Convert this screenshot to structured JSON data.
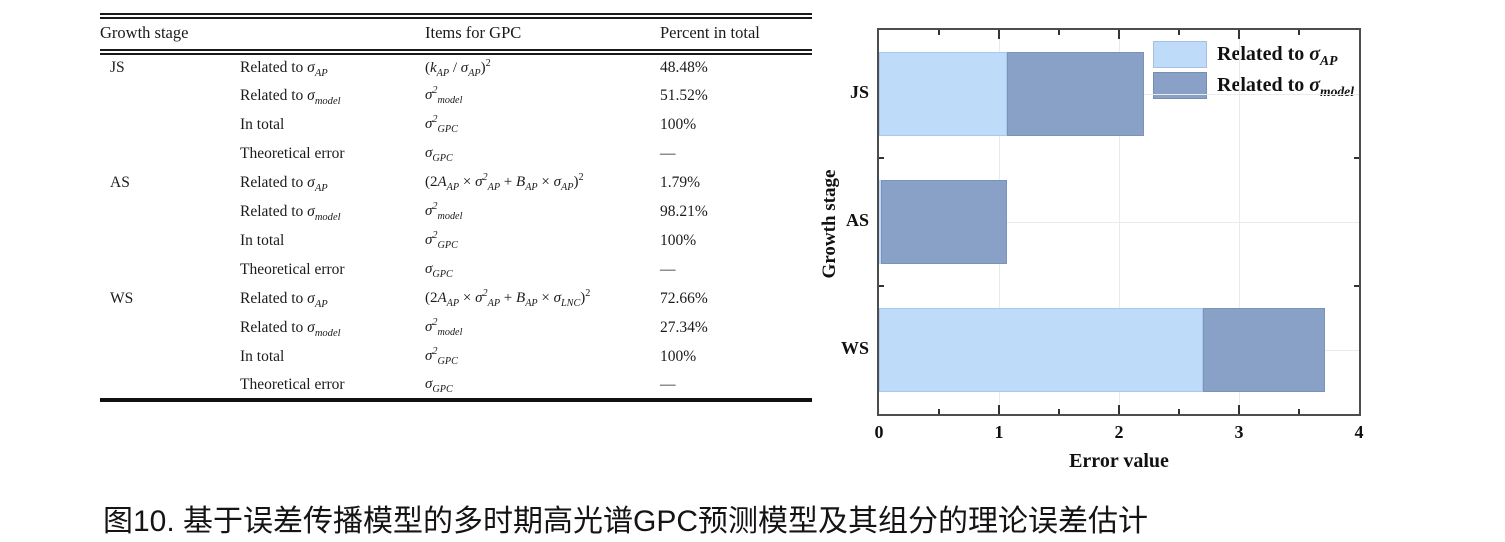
{
  "table": {
    "headers": [
      "Growth stage",
      "Items for GPC",
      "Percent in total"
    ],
    "rows": [
      {
        "stage": "JS",
        "item": "Related to *σ~AP~*",
        "formula": "(*k~AP~* / *σ~AP~*)^2^",
        "percent": "48.48%"
      },
      {
        "stage": "",
        "item": "Related to *σ~model~*",
        "formula": "*σ^2^~model~*",
        "percent": "51.52%"
      },
      {
        "stage": "",
        "item": "In total",
        "formula": "*σ^2^~GPC~*",
        "percent": "100%"
      },
      {
        "stage": "",
        "item": "Theoretical error",
        "formula": "*σ~GPC~*",
        "percent": "—"
      },
      {
        "stage": "AS",
        "item": "Related to *σ~AP~*",
        "formula": "(2*A~AP~* × *σ^2^~AP~* + *B~AP~* × *σ~AP~*)^2^",
        "percent": "1.79%"
      },
      {
        "stage": "",
        "item": "Related to *σ~model~*",
        "formula": "*σ^2^~model~*",
        "percent": "98.21%"
      },
      {
        "stage": "",
        "item": "In total",
        "formula": "*σ^2^~GPC~*",
        "percent": "100%"
      },
      {
        "stage": "",
        "item": "Theoretical error",
        "formula": "*σ~GPC~*",
        "percent": "—"
      },
      {
        "stage": "WS",
        "item": "Related to *σ~AP~*",
        "formula": "(2*A~AP~* × *σ^2^~AP~* + *B~AP~* × *σ~LNC~*)^2^",
        "percent": "72.66%"
      },
      {
        "stage": "",
        "item": "Related to *σ~model~*",
        "formula": "*σ^2^~model~*",
        "percent": "27.34%"
      },
      {
        "stage": "",
        "item": "In total",
        "formula": "*σ^2^~GPC~*",
        "percent": "100%"
      },
      {
        "stage": "",
        "item": "Theoretical error",
        "formula": "*σ~GPC~*",
        "percent": "—"
      }
    ]
  },
  "chart_data": {
    "type": "bar",
    "orientation": "horizontal-stacked",
    "categories": [
      "JS",
      "AS",
      "WS"
    ],
    "series": [
      {
        "name": "Related to *σ~AP~*",
        "color": "#bedcfa",
        "edge": "#aac9ec",
        "values": [
          1.07,
          0.02,
          2.7
        ]
      },
      {
        "name": "Related to *σ~model~*",
        "color": "#8aa1c7",
        "edge": "#7b93b8",
        "values": [
          1.14,
          1.05,
          1.02
        ]
      }
    ],
    "title": "",
    "xlabel": "Error value",
    "ylabel": "Growth stage",
    "xlim": [
      0,
      4
    ],
    "x_major_ticks": [
      0,
      1,
      2,
      3,
      4
    ],
    "x_minor_ticks": [
      0.5,
      1.5,
      2.5,
      3.5
    ],
    "grid": true,
    "legend_position": "top-right"
  },
  "caption": "图10. 基于误差传播模型的多时期高光谱GPC预测模型及其组分的理论误差估计"
}
